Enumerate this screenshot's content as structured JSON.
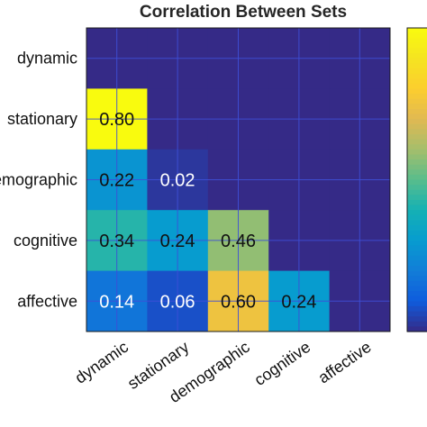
{
  "chart_data": {
    "type": "heatmap",
    "title": "Correlation Between Sets",
    "xlabel": "",
    "ylabel": "",
    "x_categories": [
      "dynamic",
      "stationary",
      "demographic",
      "cognitive",
      "affective"
    ],
    "y_categories": [
      "dynamic",
      "stationary",
      "emographic",
      "cognitive",
      "affective"
    ],
    "values": [
      [
        null,
        null,
        null,
        null,
        null
      ],
      [
        0.8,
        null,
        null,
        null,
        null
      ],
      [
        0.22,
        0.02,
        null,
        null,
        null
      ],
      [
        0.34,
        0.24,
        0.46,
        null,
        null
      ],
      [
        0.14,
        0.06,
        0.6,
        0.24,
        null
      ]
    ],
    "cell_labels": [
      [
        "",
        "",
        "",
        "",
        ""
      ],
      [
        "0.80",
        "",
        "",
        "",
        ""
      ],
      [
        "0.22",
        "0.02",
        "",
        "",
        ""
      ],
      [
        "0.34",
        "0.24",
        "0.46",
        "",
        ""
      ],
      [
        "0.14",
        "0.06",
        "0.60",
        "0.24",
        ""
      ]
    ],
    "color_range": [
      0,
      0.8
    ],
    "empty_cell_value": 0,
    "colormap": "parula",
    "grid": true,
    "colorbar": "right",
    "colors": {
      "grid_line": "#3e4fd6",
      "label_dark": "#111111",
      "label_light": "#ffffff"
    }
  }
}
